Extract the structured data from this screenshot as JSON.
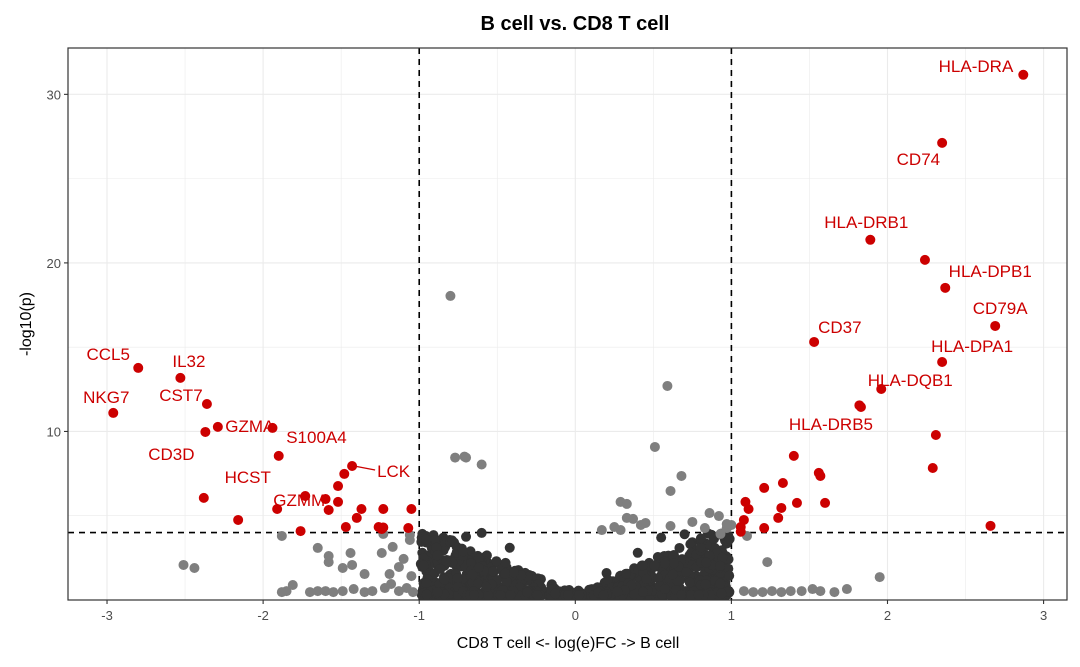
{
  "chart_data": {
    "type": "scatter",
    "title": "B cell vs. CD8 T cell",
    "xlabel": "CD8 T cell <- log(e)FC -> B cell",
    "ylabel": "-log10(p)",
    "xlim": [
      -3.25,
      3.15
    ],
    "ylim": [
      0,
      32.75
    ],
    "x_ticks": [
      -3,
      -2,
      -1,
      0,
      1,
      2,
      3
    ],
    "y_ticks": [
      10,
      20,
      30
    ],
    "grid": true,
    "legend": "none",
    "thresholds": {
      "fc_low": -1,
      "fc_high": 1,
      "neg_log10_p": 4
    },
    "colors": {
      "significant": "#cc0000",
      "fc_only": "#7f7f7f",
      "not_significant": "#333333",
      "threshold_line": "#000000",
      "grid": "#ebebeb"
    },
    "significant_points": [
      {
        "x": 2.87,
        "y": 31.16,
        "label": "HLA-DRA"
      },
      {
        "x": 2.35,
        "y": 27.12,
        "label": "CD74"
      },
      {
        "x": 1.89,
        "y": 21.37,
        "label": "HLA-DRB1"
      },
      {
        "x": 2.24,
        "y": 20.18,
        "label": ""
      },
      {
        "x": 2.37,
        "y": 18.52,
        "label": "HLA-DPB1"
      },
      {
        "x": 2.69,
        "y": 16.26,
        "label": "CD79A"
      },
      {
        "x": 1.53,
        "y": 15.31,
        "label": "CD37"
      },
      {
        "x": 2.35,
        "y": 14.12,
        "label": "HLA-DPA1"
      },
      {
        "x": 1.96,
        "y": 12.52,
        "label": "HLA-DQB1"
      },
      {
        "x": 1.83,
        "y": 11.45,
        "label": "HLA-DRB5"
      },
      {
        "x": 1.82,
        "y": 11.55,
        "label": ""
      },
      {
        "x": 2.31,
        "y": 9.79,
        "label": ""
      },
      {
        "x": 2.29,
        "y": 7.83,
        "label": ""
      },
      {
        "x": 2.66,
        "y": 4.4,
        "label": ""
      },
      {
        "x": 1.4,
        "y": 8.55,
        "label": ""
      },
      {
        "x": 1.56,
        "y": 7.54,
        "label": ""
      },
      {
        "x": 1.57,
        "y": 7.36,
        "label": ""
      },
      {
        "x": 1.21,
        "y": 6.65,
        "label": ""
      },
      {
        "x": 1.33,
        "y": 6.94,
        "label": ""
      },
      {
        "x": 1.42,
        "y": 5.76,
        "label": ""
      },
      {
        "x": 1.6,
        "y": 5.76,
        "label": ""
      },
      {
        "x": 1.09,
        "y": 5.82,
        "label": ""
      },
      {
        "x": 1.11,
        "y": 5.4,
        "label": ""
      },
      {
        "x": 1.32,
        "y": 5.46,
        "label": ""
      },
      {
        "x": 1.3,
        "y": 4.87,
        "label": ""
      },
      {
        "x": 1.08,
        "y": 4.75,
        "label": ""
      },
      {
        "x": 1.21,
        "y": 4.27,
        "label": ""
      },
      {
        "x": 1.06,
        "y": 4.33,
        "label": ""
      },
      {
        "x": 1.06,
        "y": 4.05,
        "label": ""
      },
      {
        "x": -2.8,
        "y": 13.77,
        "label": "CCL5"
      },
      {
        "x": -2.53,
        "y": 13.18,
        "label": "IL32"
      },
      {
        "x": -2.96,
        "y": 11.1,
        "label": "NKG7"
      },
      {
        "x": -2.36,
        "y": 11.63,
        "label": "CST7"
      },
      {
        "x": -2.29,
        "y": 10.27,
        "label": "GZMA"
      },
      {
        "x": -2.37,
        "y": 9.97,
        "label": "CD3D"
      },
      {
        "x": -1.94,
        "y": 10.21,
        "label": "S100A4"
      },
      {
        "x": -1.9,
        "y": 8.55,
        "label": "HCST"
      },
      {
        "x": -1.43,
        "y": 7.95,
        "label": "LCK"
      },
      {
        "x": -1.73,
        "y": 6.17,
        "label": "GZMM"
      },
      {
        "x": -2.38,
        "y": 6.06,
        "label": ""
      },
      {
        "x": -2.16,
        "y": 4.75,
        "label": ""
      },
      {
        "x": -1.91,
        "y": 5.4,
        "label": ""
      },
      {
        "x": -1.76,
        "y": 4.09,
        "label": ""
      },
      {
        "x": -1.48,
        "y": 7.48,
        "label": ""
      },
      {
        "x": -1.52,
        "y": 6.76,
        "label": ""
      },
      {
        "x": -1.6,
        "y": 5.99,
        "label": ""
      },
      {
        "x": -1.52,
        "y": 5.82,
        "label": ""
      },
      {
        "x": -1.58,
        "y": 5.34,
        "label": ""
      },
      {
        "x": -1.37,
        "y": 5.4,
        "label": ""
      },
      {
        "x": -1.4,
        "y": 4.87,
        "label": ""
      },
      {
        "x": -1.47,
        "y": 4.33,
        "label": ""
      },
      {
        "x": -1.23,
        "y": 5.4,
        "label": ""
      },
      {
        "x": -1.26,
        "y": 4.33,
        "label": ""
      },
      {
        "x": -1.24,
        "y": 4.21,
        "label": ""
      },
      {
        "x": -1.05,
        "y": 5.4,
        "label": ""
      },
      {
        "x": -1.07,
        "y": 4.27,
        "label": ""
      },
      {
        "x": -1.23,
        "y": 4.3,
        "label": ""
      }
    ],
    "fc_only_points": [
      [
        -2.51,
        2.08
      ],
      [
        -2.44,
        1.9
      ],
      [
        -1.88,
        3.8
      ],
      [
        -1.65,
        3.09
      ],
      [
        -1.58,
        2.61
      ],
      [
        -1.58,
        2.25
      ],
      [
        -1.44,
        2.79
      ],
      [
        -1.49,
        1.9
      ],
      [
        -1.43,
        2.08
      ],
      [
        -1.23,
        3.92
      ],
      [
        -1.24,
        2.79
      ],
      [
        -1.35,
        1.54
      ],
      [
        -1.19,
        1.54
      ],
      [
        -1.06,
        3.86
      ],
      [
        -1.17,
        3.15
      ],
      [
        -1.85,
        0.53
      ],
      [
        -1.81,
        0.89
      ],
      [
        -1.88,
        0.47
      ],
      [
        -1.7,
        0.47
      ],
      [
        -1.65,
        0.53
      ],
      [
        -1.6,
        0.53
      ],
      [
        -1.55,
        0.47
      ],
      [
        -1.49,
        0.53
      ],
      [
        -1.42,
        0.65
      ],
      [
        -1.35,
        0.47
      ],
      [
        -1.3,
        0.53
      ],
      [
        -1.22,
        0.71
      ],
      [
        -1.18,
        0.95
      ],
      [
        -1.13,
        0.53
      ],
      [
        -1.08,
        0.71
      ],
      [
        -1.04,
        0.47
      ],
      [
        -1.13,
        1.96
      ],
      [
        -1.1,
        2.44
      ],
      [
        -1.06,
        3.56
      ],
      [
        -1.05,
        1.42
      ],
      [
        -0.8,
        18.04
      ],
      [
        -0.77,
        8.45
      ],
      [
        -0.71,
        8.51
      ],
      [
        -0.7,
        8.45
      ],
      [
        -0.6,
        8.04
      ],
      [
        0.59,
        12.7
      ],
      [
        0.51,
        9.08
      ],
      [
        0.68,
        7.36
      ],
      [
        0.61,
        6.47
      ],
      [
        0.29,
        5.82
      ],
      [
        0.33,
        5.7
      ],
      [
        0.33,
        4.87
      ],
      [
        0.37,
        4.81
      ],
      [
        0.45,
        4.57
      ],
      [
        0.42,
        4.45
      ],
      [
        0.29,
        4.15
      ],
      [
        0.17,
        4.15
      ],
      [
        0.25,
        4.33
      ],
      [
        0.86,
        5.16
      ],
      [
        0.92,
        4.98
      ],
      [
        0.75,
        4.63
      ],
      [
        0.61,
        4.39
      ],
      [
        0.83,
        4.27
      ],
      [
        0.93,
        3.92
      ],
      [
        0.97,
        4.27
      ],
      [
        1.0,
        4.45
      ],
      [
        0.97,
        4.51
      ],
      [
        1.1,
        3.8
      ],
      [
        1.23,
        2.25
      ],
      [
        1.95,
        1.36
      ],
      [
        1.08,
        0.53
      ],
      [
        1.14,
        0.47
      ],
      [
        1.2,
        0.47
      ],
      [
        1.26,
        0.53
      ],
      [
        1.32,
        0.47
      ],
      [
        1.38,
        0.53
      ],
      [
        1.45,
        0.53
      ],
      [
        1.52,
        0.65
      ],
      [
        1.57,
        0.53
      ],
      [
        1.66,
        0.47
      ],
      [
        1.74,
        0.65
      ]
    ],
    "ns_points_generator": {
      "description": "dense non-significant cluster with |logFC| < 1 and -log10(p) < 4, V-shaped around 0",
      "count": 1100,
      "seed": 7
    },
    "ns_points": [
      [
        -0.98,
        3.92
      ],
      [
        -0.85,
        3.5
      ],
      [
        -0.7,
        3.75
      ],
      [
        -0.6,
        3.98
      ],
      [
        -0.42,
        3.1
      ],
      [
        -0.98,
        2.8
      ],
      [
        -0.95,
        1.2
      ],
      [
        -0.88,
        0.6
      ],
      [
        -0.5,
        2.2
      ],
      [
        -0.3,
        1.4
      ],
      [
        -0.1,
        0.4
      ],
      [
        0.05,
        0.3
      ],
      [
        0.2,
        1.6
      ],
      [
        0.4,
        2.8
      ],
      [
        0.55,
        3.7
      ],
      [
        0.7,
        3.9
      ],
      [
        0.85,
        3.95
      ],
      [
        0.98,
        3.8
      ],
      [
        0.95,
        1.0
      ],
      [
        0.8,
        0.7
      ],
      [
        0.6,
        0.6
      ],
      [
        0.98,
        0.55
      ]
    ]
  }
}
